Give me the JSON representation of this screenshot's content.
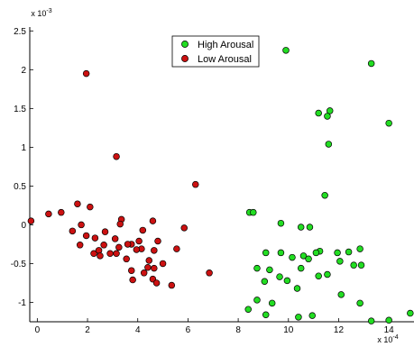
{
  "chart_data": {
    "type": "scatter",
    "x_multiplier_label": "x 10",
    "x_multiplier_exp": "-4",
    "y_multiplier_label": "x 10",
    "y_multiplier_exp": "-3",
    "xlim": [
      -0.3,
      15
    ],
    "ylim": [
      -1.25,
      2.55
    ],
    "x_ticks": [
      0,
      2,
      4,
      6,
      8,
      10,
      12,
      14
    ],
    "y_ticks": [
      -1,
      -0.5,
      0,
      0.5,
      1,
      1.5,
      2,
      2.5
    ],
    "x_tick_labels": [
      "0",
      "2",
      "4",
      "6",
      "8",
      "10",
      "12",
      "14"
    ],
    "y_tick_labels": [
      "-1",
      "-0.5",
      "0",
      "0.5",
      "1",
      "1.5",
      "2",
      "2.5"
    ],
    "grid": false,
    "legend_position": "top-center",
    "series": [
      {
        "name": "High Arousal",
        "color": "#22dd22",
        "points": [
          [
            9.9,
            2.25
          ],
          [
            13.3,
            2.08
          ],
          [
            11.2,
            1.44
          ],
          [
            11.65,
            1.47
          ],
          [
            11.55,
            1.4
          ],
          [
            14.0,
            1.31
          ],
          [
            11.6,
            1.04
          ],
          [
            11.45,
            0.38
          ],
          [
            8.45,
            0.16
          ],
          [
            8.6,
            0.16
          ],
          [
            9.7,
            0.02
          ],
          [
            10.5,
            -0.03
          ],
          [
            10.85,
            -0.03
          ],
          [
            9.1,
            -0.36
          ],
          [
            9.7,
            -0.36
          ],
          [
            11.25,
            -0.34
          ],
          [
            11.95,
            -0.36
          ],
          [
            12.4,
            -0.35
          ],
          [
            12.85,
            -0.31
          ],
          [
            10.6,
            -0.4
          ],
          [
            10.15,
            -0.42
          ],
          [
            11.1,
            -0.36
          ],
          [
            10.8,
            -0.44
          ],
          [
            12.05,
            -0.47
          ],
          [
            12.6,
            -0.52
          ],
          [
            12.9,
            -0.52
          ],
          [
            8.75,
            -0.56
          ],
          [
            9.25,
            -0.58
          ],
          [
            9.65,
            -0.67
          ],
          [
            10.5,
            -0.56
          ],
          [
            11.2,
            -0.66
          ],
          [
            11.55,
            -0.64
          ],
          [
            9.05,
            -0.73
          ],
          [
            9.95,
            -0.72
          ],
          [
            10.35,
            -0.82
          ],
          [
            12.1,
            -0.9
          ],
          [
            8.75,
            -0.97
          ],
          [
            9.35,
            -1.01
          ],
          [
            8.4,
            -1.09
          ],
          [
            9.1,
            -1.16
          ],
          [
            10.4,
            -1.19
          ],
          [
            10.95,
            -1.17
          ],
          [
            12.85,
            -1.01
          ],
          [
            13.3,
            -1.24
          ],
          [
            14.0,
            -1.23
          ],
          [
            14.85,
            -1.14
          ]
        ]
      },
      {
        "name": "Low Arousal",
        "color": "#cc1111",
        "points": [
          [
            1.95,
            1.95
          ],
          [
            3.15,
            0.88
          ],
          [
            6.3,
            0.52
          ],
          [
            1.6,
            0.27
          ],
          [
            2.1,
            0.23
          ],
          [
            0.95,
            0.16
          ],
          [
            0.45,
            0.14
          ],
          [
            -0.25,
            0.05
          ],
          [
            1.75,
            0.0
          ],
          [
            3.35,
            0.07
          ],
          [
            3.3,
            0.01
          ],
          [
            4.6,
            0.05
          ],
          [
            5.85,
            -0.04
          ],
          [
            1.4,
            -0.08
          ],
          [
            1.95,
            -0.14
          ],
          [
            2.7,
            -0.09
          ],
          [
            4.2,
            -0.07
          ],
          [
            2.3,
            -0.17
          ],
          [
            3.1,
            -0.18
          ],
          [
            4.05,
            -0.21
          ],
          [
            4.8,
            -0.21
          ],
          [
            1.7,
            -0.26
          ],
          [
            2.65,
            -0.26
          ],
          [
            3.25,
            -0.29
          ],
          [
            3.75,
            -0.25
          ],
          [
            3.6,
            -0.25
          ],
          [
            4.15,
            -0.31
          ],
          [
            3.95,
            -0.32
          ],
          [
            4.65,
            -0.33
          ],
          [
            5.55,
            -0.31
          ],
          [
            2.25,
            -0.37
          ],
          [
            2.45,
            -0.33
          ],
          [
            2.9,
            -0.37
          ],
          [
            3.15,
            -0.37
          ],
          [
            2.5,
            -0.4
          ],
          [
            3.55,
            -0.44
          ],
          [
            4.45,
            -0.46
          ],
          [
            5.0,
            -0.5
          ],
          [
            4.4,
            -0.55
          ],
          [
            4.65,
            -0.56
          ],
          [
            3.75,
            -0.59
          ],
          [
            4.25,
            -0.62
          ],
          [
            6.85,
            -0.62
          ],
          [
            3.8,
            -0.71
          ],
          [
            4.6,
            -0.7
          ],
          [
            4.75,
            -0.75
          ],
          [
            5.35,
            -0.78
          ]
        ]
      }
    ]
  }
}
